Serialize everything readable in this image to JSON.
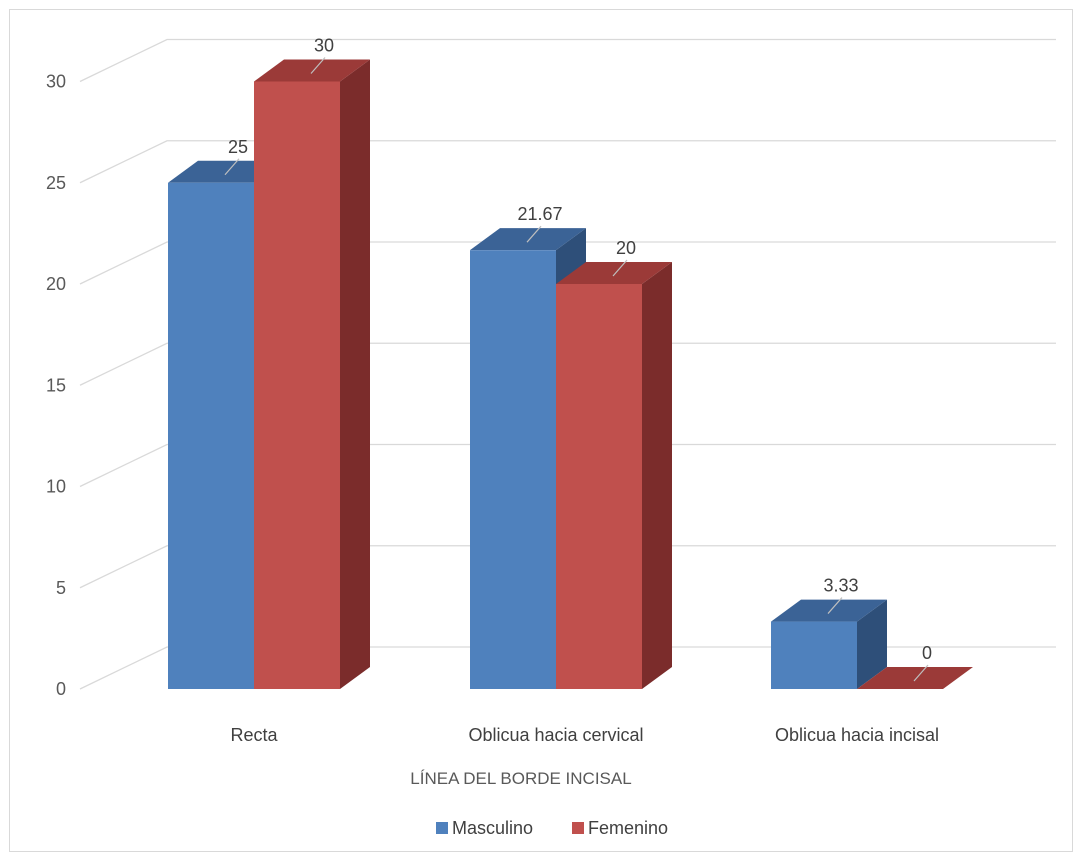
{
  "chart_data": {
    "type": "bar",
    "categories": [
      "Recta",
      "Oblicua hacia cervical",
      "Oblicua hacia incisal"
    ],
    "series": [
      {
        "name": "Masculino",
        "values": [
          25,
          21.67,
          3.33
        ],
        "color": "#4f81bd",
        "side_color": "#2e4f79",
        "top_color": "#3b6396"
      },
      {
        "name": "Femenino",
        "values": [
          30,
          20,
          0
        ],
        "color": "#c0504d",
        "side_color": "#7b2c2b",
        "top_color": "#9b3a38"
      }
    ],
    "data_labels": [
      [
        "25",
        "21.67",
        "3.33"
      ],
      [
        "30",
        "20",
        "0"
      ]
    ],
    "title": "",
    "xlabel": "LÍNEA DEL BORDE INCISAL",
    "ylabel": "",
    "ylim": [
      0,
      30
    ],
    "yticks": [
      0,
      5,
      10,
      15,
      20,
      25,
      30
    ],
    "grid": true,
    "legend_position": "bottom",
    "style": "3d-column"
  }
}
